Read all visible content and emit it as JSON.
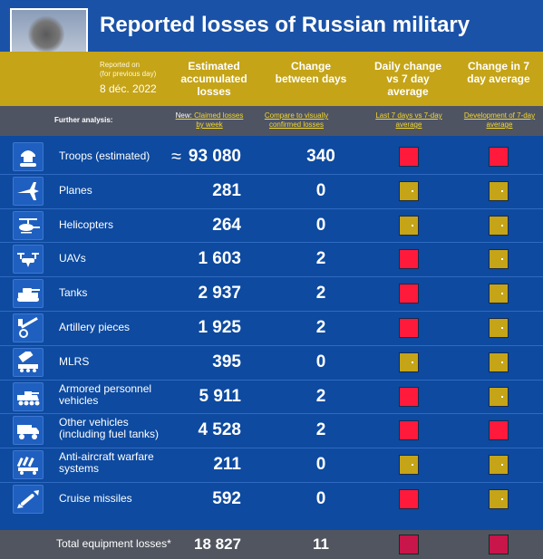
{
  "title": "Reported losses of Russian military",
  "reported_on": "Reported on",
  "reported_note": "(for previous day)",
  "date": "8 déc. 2022",
  "columns": {
    "accumulated": "Estimated accumulated losses",
    "change": "Change between days",
    "daily_vs_avg": "Daily change vs 7 day average",
    "change_7day": "Change in 7 day average"
  },
  "analysis": {
    "label": "Further analysis:",
    "new_prefix": "New:",
    "link_claimed": "Claimed losses by week",
    "link_compare": "Compare to visually confirmed losses",
    "link_last7": "Last 7 days vs 7-day average",
    "link_development": "Development of 7-day average"
  },
  "rows": [
    {
      "label": "Troops (estimated)",
      "approx": "≈",
      "value": "93 080",
      "change": "340",
      "daily": "red",
      "trend": "red",
      "icon": "soldier-icon"
    },
    {
      "label": "Planes",
      "value": "281",
      "change": "0",
      "daily": "olive",
      "trend": "olive",
      "icon": "jet-icon"
    },
    {
      "label": "Helicopters",
      "value": "264",
      "change": "0",
      "daily": "olive",
      "trend": "olive",
      "icon": "helicopter-icon"
    },
    {
      "label": "UAVs",
      "value": "1 603",
      "change": "2",
      "daily": "red",
      "trend": "olive",
      "icon": "drone-icon"
    },
    {
      "label": "Tanks",
      "value": "2 937",
      "change": "2",
      "daily": "red",
      "trend": "olive",
      "icon": "tank-icon"
    },
    {
      "label": "Artillery pieces",
      "value": "1 925",
      "change": "2",
      "daily": "red",
      "trend": "olive",
      "icon": "artillery-icon"
    },
    {
      "label": "MLRS",
      "value": "395",
      "change": "0",
      "daily": "olive",
      "trend": "olive",
      "icon": "mlrs-icon"
    },
    {
      "label": "Armored personnel vehicles",
      "value": "5 911",
      "change": "2",
      "daily": "red",
      "trend": "olive",
      "icon": "apc-icon"
    },
    {
      "label": "Other vehicles (including fuel tanks)",
      "value": "4 528",
      "change": "2",
      "daily": "red",
      "trend": "red",
      "icon": "truck-icon"
    },
    {
      "label": "Anti-aircraft warfare systems",
      "value": "211",
      "change": "0",
      "daily": "olive",
      "trend": "olive",
      "icon": "anti-aircraft-icon"
    },
    {
      "label": "Cruise missiles",
      "value": "592",
      "change": "0",
      "daily": "red",
      "trend": "olive",
      "icon": "missile-icon"
    }
  ],
  "total": {
    "label": "Total equipment losses*",
    "value": "18 827",
    "change": "11"
  },
  "colors": {
    "background": "#0d4aa0",
    "band": "#c5a417",
    "red": "#ff1a3c",
    "olive": "#c5a417",
    "total_marker": "#c8164a"
  }
}
